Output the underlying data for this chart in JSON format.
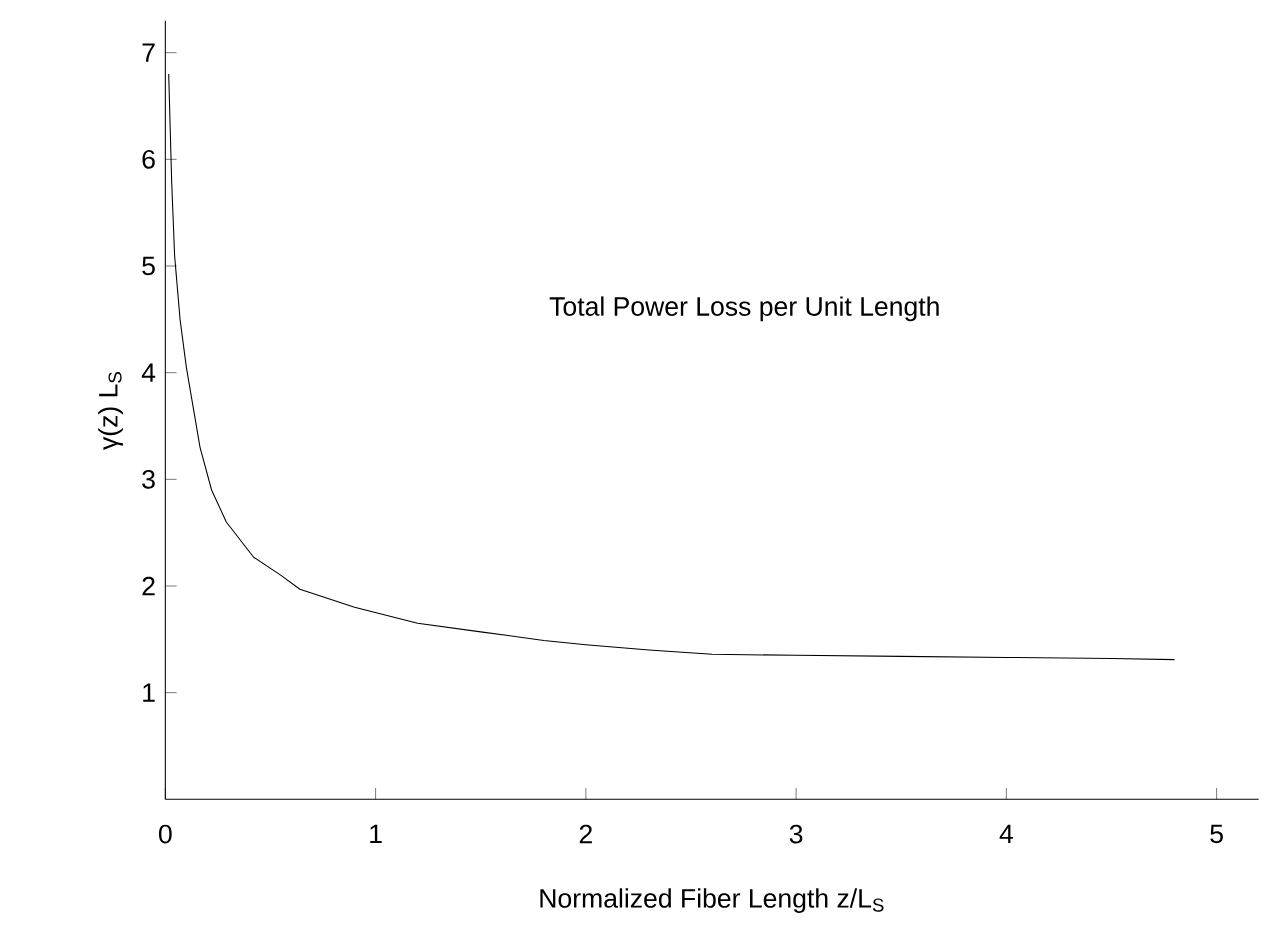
{
  "chart_data": {
    "type": "line",
    "xlabel": "Normalized Fiber Length z/L$_{S}$",
    "ylabel": "γ(z) L$_{S}$",
    "annotations": [
      "Total Power Loss per Unit Length"
    ],
    "x": [
      0.016,
      0.03,
      0.044,
      0.07,
      0.1,
      0.165,
      0.22,
      0.29,
      0.42,
      0.55,
      0.64,
      0.9,
      1.2,
      1.5,
      1.8,
      2.0,
      2.3,
      2.6,
      3.0,
      3.5,
      4.0,
      4.5,
      4.8
    ],
    "series": [
      {
        "color": "#000000",
        "values": [
          6.8,
          5.8,
          5.1,
          4.5,
          4.05,
          3.3,
          2.9,
          2.6,
          2.27,
          2.1,
          1.97,
          1.8,
          1.65,
          1.57,
          1.49,
          1.45,
          1.4,
          1.36,
          1.35,
          1.34,
          1.33,
          1.32,
          1.31
        ]
      }
    ],
    "xlim": [
      0,
      5.2
    ],
    "ylim": [
      0,
      7.3
    ],
    "xticks": [
      0,
      1,
      2,
      3,
      4,
      5
    ],
    "yticks": [
      1,
      2,
      3,
      4,
      5,
      6,
      7
    ],
    "grid": false,
    "marker": "none",
    "line_style": "solid"
  }
}
